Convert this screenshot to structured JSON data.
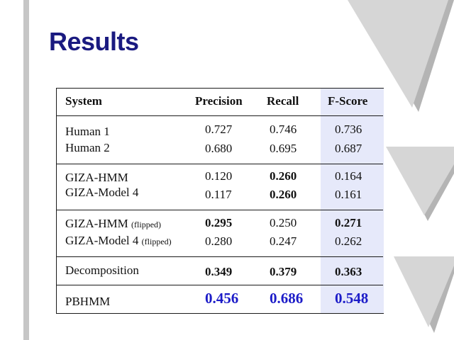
{
  "title": "Results",
  "table": {
    "headers": {
      "system": "System",
      "precision": "Precision",
      "recall": "Recall",
      "fscore": "F-Score"
    },
    "rows": [
      {
        "system": "Human 1",
        "precision": "0.727",
        "recall": "0.746",
        "fscore": "0.736"
      },
      {
        "system": "Human 2",
        "precision": "0.680",
        "recall": "0.695",
        "fscore": "0.687"
      },
      {
        "system": "GIZA-HMM",
        "precision": "0.120",
        "recall": "0.260",
        "fscore": "0.164"
      },
      {
        "system": "GIZA-Model 4",
        "precision": "0.117",
        "recall": "0.260",
        "fscore": "0.161"
      },
      {
        "system": "GIZA-HMM",
        "suffix": "(flipped)",
        "precision": "0.295",
        "recall": "0.250",
        "fscore": "0.271"
      },
      {
        "system": "GIZA-Model 4",
        "suffix": "(flipped)",
        "precision": "0.280",
        "recall": "0.247",
        "fscore": "0.262"
      },
      {
        "system": "Decomposition",
        "precision": "0.349",
        "recall": "0.379",
        "fscore": "0.363"
      },
      {
        "system": "PBHMM",
        "precision": "0.456",
        "recall": "0.686",
        "fscore": "0.548"
      }
    ]
  },
  "colors": {
    "title": "#1a1a80",
    "highlight": "#1c1cc8",
    "fscore_column": "#e6e9fa"
  }
}
